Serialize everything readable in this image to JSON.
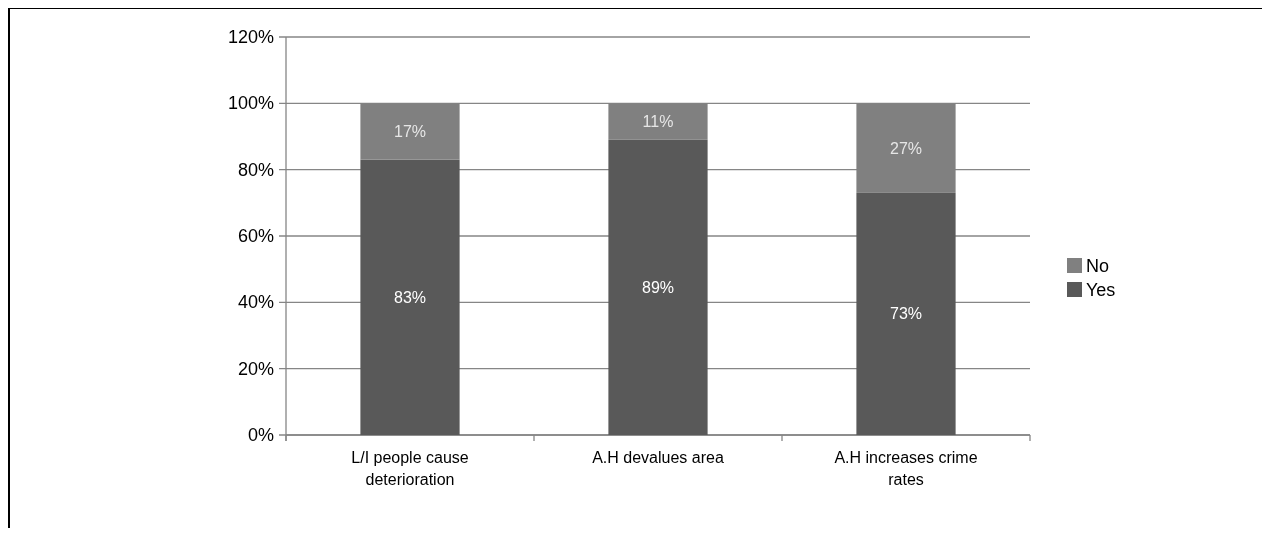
{
  "chart_data": {
    "type": "bar",
    "stacked": true,
    "categories": [
      "L/I people cause deterioration",
      "A.H devalues area",
      "A.H increases crime rates"
    ],
    "series": [
      {
        "name": "Yes",
        "color": "#595959",
        "values": [
          83,
          89,
          73
        ],
        "value_labels": [
          "83%",
          "89%",
          "73%"
        ]
      },
      {
        "name": "No",
        "color": "#808080",
        "values": [
          17,
          11,
          27
        ],
        "value_labels": [
          "17%",
          "11%",
          "27%"
        ]
      }
    ],
    "ylim": [
      0,
      120
    ],
    "yticks": [
      {
        "value": 0,
        "label": "0%"
      },
      {
        "value": 20,
        "label": "20%"
      },
      {
        "value": 40,
        "label": "40%"
      },
      {
        "value": 60,
        "label": "60%"
      },
      {
        "value": 80,
        "label": "80%"
      },
      {
        "value": 100,
        "label": "100%"
      },
      {
        "value": 120,
        "label": "120%"
      }
    ],
    "grid": "y",
    "legend": "right"
  }
}
